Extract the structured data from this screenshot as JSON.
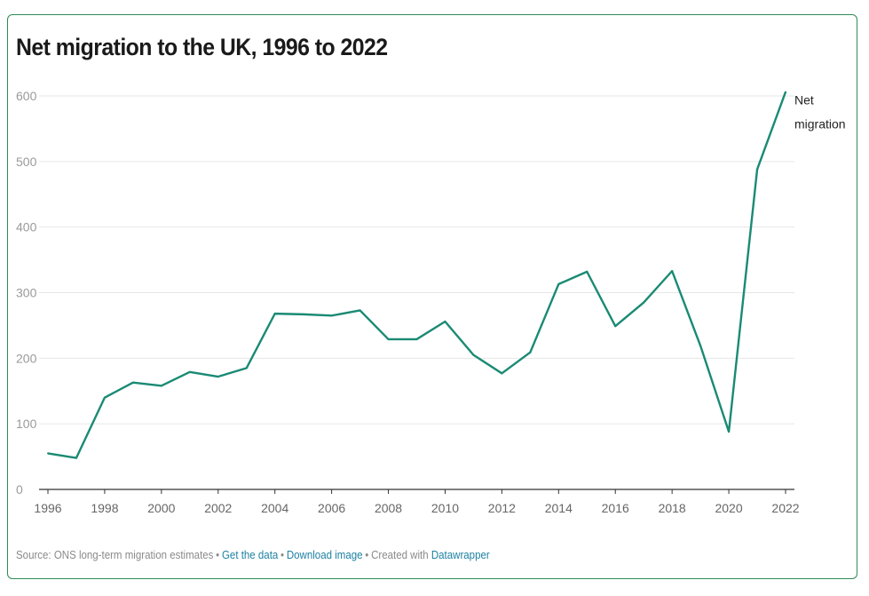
{
  "chart_data": {
    "type": "line",
    "title": "Net migration to the UK, 1996 to 2022",
    "xlabel": "",
    "ylabel": "",
    "x": [
      1996,
      1997,
      1998,
      1999,
      2000,
      2001,
      2002,
      2003,
      2004,
      2005,
      2006,
      2007,
      2008,
      2009,
      2010,
      2011,
      2012,
      2013,
      2014,
      2015,
      2016,
      2017,
      2018,
      2019,
      2020,
      2021,
      2022
    ],
    "series": [
      {
        "name": "Net migration",
        "color": "#1a8a74",
        "values": [
          55,
          48,
          140,
          163,
          158,
          179,
          172,
          185,
          268,
          267,
          265,
          273,
          229,
          229,
          256,
          205,
          177,
          209,
          313,
          332,
          249,
          285,
          333,
          219,
          88,
          488,
          606
        ]
      }
    ],
    "xlim": [
      1996,
      2022
    ],
    "ylim": [
      0,
      600
    ],
    "xticks": [
      "1996",
      "1998",
      "2000",
      "2002",
      "2004",
      "2006",
      "2008",
      "2010",
      "2012",
      "2014",
      "2016",
      "2018",
      "2020",
      "2022"
    ],
    "yticks": [
      "0",
      "100",
      "200",
      "300",
      "400",
      "500",
      "600"
    ],
    "grid": true,
    "legend": "end-of-line label"
  },
  "footer": {
    "source": "Source: ONS long-term migration estimates",
    "get_data": "Get the data",
    "download": "Download image",
    "created": "Created with",
    "datawrapper": "Datawrapper"
  }
}
